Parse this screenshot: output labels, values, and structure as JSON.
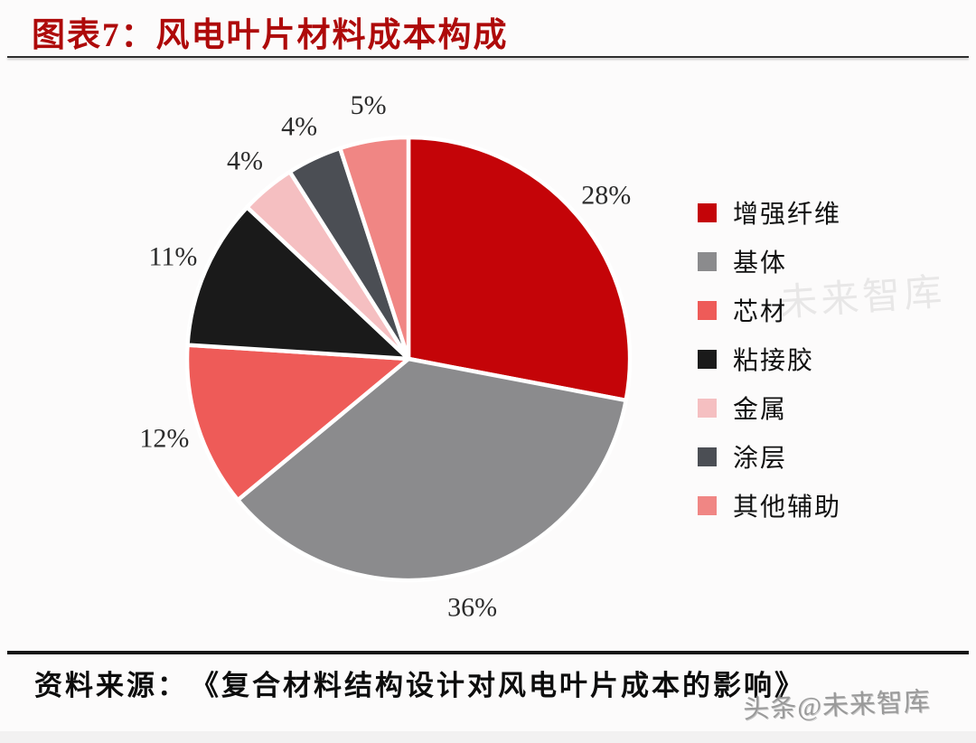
{
  "header": {
    "title": "图表7：风电叶片材料成本构成"
  },
  "chart_data": {
    "type": "pie",
    "title": "图表7：风电叶片材料成本构成",
    "start_angle": "12-oclock",
    "direction": "clockwise",
    "value_suffix": "%",
    "labels_show": "percent-outside",
    "legend_position": "right",
    "categories": [
      "增强纤维",
      "基体",
      "芯材",
      "粘接胶",
      "金属",
      "涂层",
      "其他辅助"
    ],
    "values": [
      28,
      36,
      12,
      11,
      4,
      4,
      5
    ],
    "series": [
      {
        "label": "增强纤维",
        "value": 28,
        "color": "#C40408"
      },
      {
        "label": "基体",
        "value": 36,
        "color": "#8B8B8D"
      },
      {
        "label": "芯材",
        "value": 12,
        "color": "#EE5B58"
      },
      {
        "label": "粘接胶",
        "value": 11,
        "color": "#1A1A1A"
      },
      {
        "label": "金属",
        "value": 4,
        "color": "#F5BFC1"
      },
      {
        "label": "涂层",
        "value": 4,
        "color": "#4B4E54"
      },
      {
        "label": "其他辅助",
        "value": 5,
        "color": "#F08684"
      }
    ]
  },
  "footer": {
    "source": "资料来源：　《复合材料结构设计对风电叶片成本的影响》"
  },
  "watermarks": {
    "bottom": "头条@未来智库",
    "middle": "未来智库"
  },
  "colors": {
    "title": "#AE0A0A",
    "divider_top": "#2E2E2E",
    "divider_bottom": "#161616",
    "slice_border": "#FFFFFF",
    "label_text": "#2B2B2B"
  }
}
